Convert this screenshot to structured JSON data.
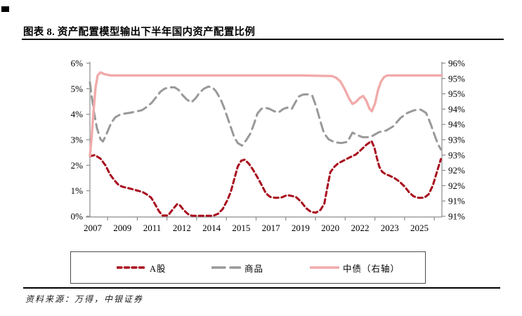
{
  "page": {
    "title": "图表 8. 资产配置模型输出下半年国内资产配置比例",
    "source_note": "资料来源：万得，中银证券"
  },
  "colors": {
    "a_share_red": "#A80E1E",
    "commodity_gray": "#999999",
    "bond_pink": "#F2AAAA",
    "axis_gray": "#8c8c8c",
    "label_black": "#000000"
  },
  "chart_data": {
    "type": "line",
    "title": "资产配置模型输出下半年国内资产配置比例",
    "x_note": "series points are [fraction_across_plot_0_to_1, value]; timeline spans 2007 to 2025H2",
    "x_ticks": [
      "2007",
      "2009",
      "2011",
      "2012",
      "2014",
      "2015",
      "2017",
      "2019",
      "2020",
      "2022",
      "2023",
      "2025"
    ],
    "left_axis": {
      "min": 0,
      "max": 6,
      "step": 1,
      "labels": [
        "6%",
        "5%",
        "4%",
        "3%",
        "2%",
        "1%",
        "0%"
      ]
    },
    "right_axis": {
      "min": 91,
      "max": 96,
      "step": 0.5,
      "labels": [
        "96%",
        "95%",
        "95%",
        "94%",
        "94%",
        "93%",
        "93%",
        "92%",
        "92%",
        "91%",
        "91%"
      ]
    },
    "grid": false,
    "legend": {
      "position": "bottom-box",
      "items": [
        "A股",
        "商品",
        "中债（右轴）"
      ]
    },
    "series": [
      {
        "name": "A股",
        "axis": "left",
        "style": "dash-short",
        "color": "#A80E1E",
        "points": [
          [
            0.0,
            2.35
          ],
          [
            0.014,
            2.4
          ],
          [
            0.03,
            2.26
          ],
          [
            0.044,
            2.0
          ],
          [
            0.058,
            1.62
          ],
          [
            0.07,
            1.4
          ],
          [
            0.082,
            1.22
          ],
          [
            0.094,
            1.15
          ],
          [
            0.11,
            1.1
          ],
          [
            0.124,
            1.05
          ],
          [
            0.137,
            1.0
          ],
          [
            0.15,
            0.95
          ],
          [
            0.162,
            0.85
          ],
          [
            0.174,
            0.73
          ],
          [
            0.186,
            0.45
          ],
          [
            0.196,
            0.2
          ],
          [
            0.206,
            0.03
          ],
          [
            0.222,
            0.03
          ],
          [
            0.236,
            0.28
          ],
          [
            0.248,
            0.48
          ],
          [
            0.256,
            0.42
          ],
          [
            0.268,
            0.22
          ],
          [
            0.282,
            0.05
          ],
          [
            0.292,
            0.02
          ],
          [
            0.35,
            0.02
          ],
          [
            0.364,
            0.1
          ],
          [
            0.377,
            0.28
          ],
          [
            0.39,
            0.62
          ],
          [
            0.4,
            0.95
          ],
          [
            0.41,
            1.45
          ],
          [
            0.42,
            1.95
          ],
          [
            0.43,
            2.18
          ],
          [
            0.44,
            2.22
          ],
          [
            0.452,
            2.05
          ],
          [
            0.463,
            1.83
          ],
          [
            0.475,
            1.55
          ],
          [
            0.487,
            1.25
          ],
          [
            0.5,
            0.9
          ],
          [
            0.512,
            0.76
          ],
          [
            0.528,
            0.72
          ],
          [
            0.545,
            0.74
          ],
          [
            0.56,
            0.83
          ],
          [
            0.572,
            0.8
          ],
          [
            0.585,
            0.76
          ],
          [
            0.6,
            0.57
          ],
          [
            0.614,
            0.32
          ],
          [
            0.628,
            0.17
          ],
          [
            0.642,
            0.14
          ],
          [
            0.655,
            0.25
          ],
          [
            0.666,
            0.5
          ],
          [
            0.674,
            1.1
          ],
          [
            0.683,
            1.73
          ],
          [
            0.695,
            1.95
          ],
          [
            0.705,
            2.07
          ],
          [
            0.72,
            2.18
          ],
          [
            0.737,
            2.3
          ],
          [
            0.755,
            2.42
          ],
          [
            0.77,
            2.6
          ],
          [
            0.785,
            2.8
          ],
          [
            0.8,
            2.95
          ],
          [
            0.808,
            2.7
          ],
          [
            0.815,
            2.3
          ],
          [
            0.822,
            1.95
          ],
          [
            0.83,
            1.75
          ],
          [
            0.84,
            1.65
          ],
          [
            0.85,
            1.6
          ],
          [
            0.865,
            1.5
          ],
          [
            0.88,
            1.35
          ],
          [
            0.895,
            1.15
          ],
          [
            0.908,
            0.92
          ],
          [
            0.92,
            0.78
          ],
          [
            0.935,
            0.72
          ],
          [
            0.95,
            0.73
          ],
          [
            0.962,
            0.86
          ],
          [
            0.974,
            1.2
          ],
          [
            0.986,
            1.75
          ],
          [
            0.997,
            2.24
          ]
        ]
      },
      {
        "name": "商品",
        "axis": "left",
        "style": "dash-long",
        "color": "#999999",
        "points": [
          [
            0.0,
            5.25
          ],
          [
            0.005,
            4.7
          ],
          [
            0.012,
            4.05
          ],
          [
            0.02,
            3.45
          ],
          [
            0.03,
            3.02
          ],
          [
            0.037,
            2.93
          ],
          [
            0.048,
            3.25
          ],
          [
            0.06,
            3.65
          ],
          [
            0.072,
            3.88
          ],
          [
            0.085,
            3.98
          ],
          [
            0.1,
            4.03
          ],
          [
            0.115,
            4.06
          ],
          [
            0.13,
            4.1
          ],
          [
            0.148,
            4.16
          ],
          [
            0.163,
            4.3
          ],
          [
            0.176,
            4.46
          ],
          [
            0.19,
            4.7
          ],
          [
            0.2,
            4.88
          ],
          [
            0.212,
            5.0
          ],
          [
            0.225,
            5.05
          ],
          [
            0.24,
            5.06
          ],
          [
            0.252,
            4.95
          ],
          [
            0.263,
            4.75
          ],
          [
            0.275,
            4.58
          ],
          [
            0.288,
            4.46
          ],
          [
            0.3,
            4.62
          ],
          [
            0.312,
            4.85
          ],
          [
            0.324,
            5.0
          ],
          [
            0.336,
            5.08
          ],
          [
            0.348,
            5.06
          ],
          [
            0.358,
            4.9
          ],
          [
            0.37,
            4.62
          ],
          [
            0.38,
            4.3
          ],
          [
            0.39,
            3.9
          ],
          [
            0.4,
            3.5
          ],
          [
            0.41,
            3.1
          ],
          [
            0.42,
            2.87
          ],
          [
            0.432,
            2.77
          ],
          [
            0.445,
            3.0
          ],
          [
            0.456,
            3.25
          ],
          [
            0.466,
            3.62
          ],
          [
            0.476,
            4.03
          ],
          [
            0.487,
            4.21
          ],
          [
            0.497,
            4.26
          ],
          [
            0.51,
            4.21
          ],
          [
            0.523,
            4.12
          ],
          [
            0.536,
            4.07
          ],
          [
            0.549,
            4.2
          ],
          [
            0.56,
            4.26
          ],
          [
            0.573,
            4.2
          ],
          [
            0.585,
            4.5
          ],
          [
            0.594,
            4.7
          ],
          [
            0.605,
            4.77
          ],
          [
            0.618,
            4.78
          ],
          [
            0.632,
            4.72
          ],
          [
            0.643,
            4.3
          ],
          [
            0.653,
            3.8
          ],
          [
            0.665,
            3.25
          ],
          [
            0.678,
            3.02
          ],
          [
            0.695,
            2.9
          ],
          [
            0.715,
            2.87
          ],
          [
            0.732,
            2.92
          ],
          [
            0.746,
            3.28
          ],
          [
            0.76,
            3.18
          ],
          [
            0.775,
            3.1
          ],
          [
            0.796,
            3.1
          ],
          [
            0.806,
            3.18
          ],
          [
            0.822,
            3.3
          ],
          [
            0.842,
            3.36
          ],
          [
            0.862,
            3.53
          ],
          [
            0.882,
            3.85
          ],
          [
            0.902,
            4.05
          ],
          [
            0.922,
            4.16
          ],
          [
            0.94,
            4.18
          ],
          [
            0.955,
            4.05
          ],
          [
            0.968,
            3.62
          ],
          [
            0.982,
            3.07
          ],
          [
            0.99,
            2.8
          ],
          [
            0.997,
            2.62
          ]
        ]
      },
      {
        "name": "中债（右轴）",
        "axis": "right",
        "style": "solid",
        "color": "#F2AAAA",
        "points": [
          [
            0.0,
            92.97
          ],
          [
            0.005,
            93.6
          ],
          [
            0.01,
            94.4
          ],
          [
            0.016,
            95.2
          ],
          [
            0.022,
            95.6
          ],
          [
            0.03,
            95.7
          ],
          [
            0.042,
            95.64
          ],
          [
            0.06,
            95.6
          ],
          [
            0.3,
            95.6
          ],
          [
            0.6,
            95.6
          ],
          [
            0.688,
            95.58
          ],
          [
            0.7,
            95.52
          ],
          [
            0.712,
            95.4
          ],
          [
            0.724,
            95.15
          ],
          [
            0.736,
            94.85
          ],
          [
            0.746,
            94.67
          ],
          [
            0.755,
            94.73
          ],
          [
            0.766,
            94.86
          ],
          [
            0.776,
            94.93
          ],
          [
            0.785,
            94.78
          ],
          [
            0.794,
            94.52
          ],
          [
            0.801,
            94.43
          ],
          [
            0.81,
            94.68
          ],
          [
            0.818,
            95.1
          ],
          [
            0.827,
            95.4
          ],
          [
            0.836,
            95.55
          ],
          [
            0.845,
            95.6
          ],
          [
            1.0,
            95.6
          ]
        ]
      }
    ]
  }
}
